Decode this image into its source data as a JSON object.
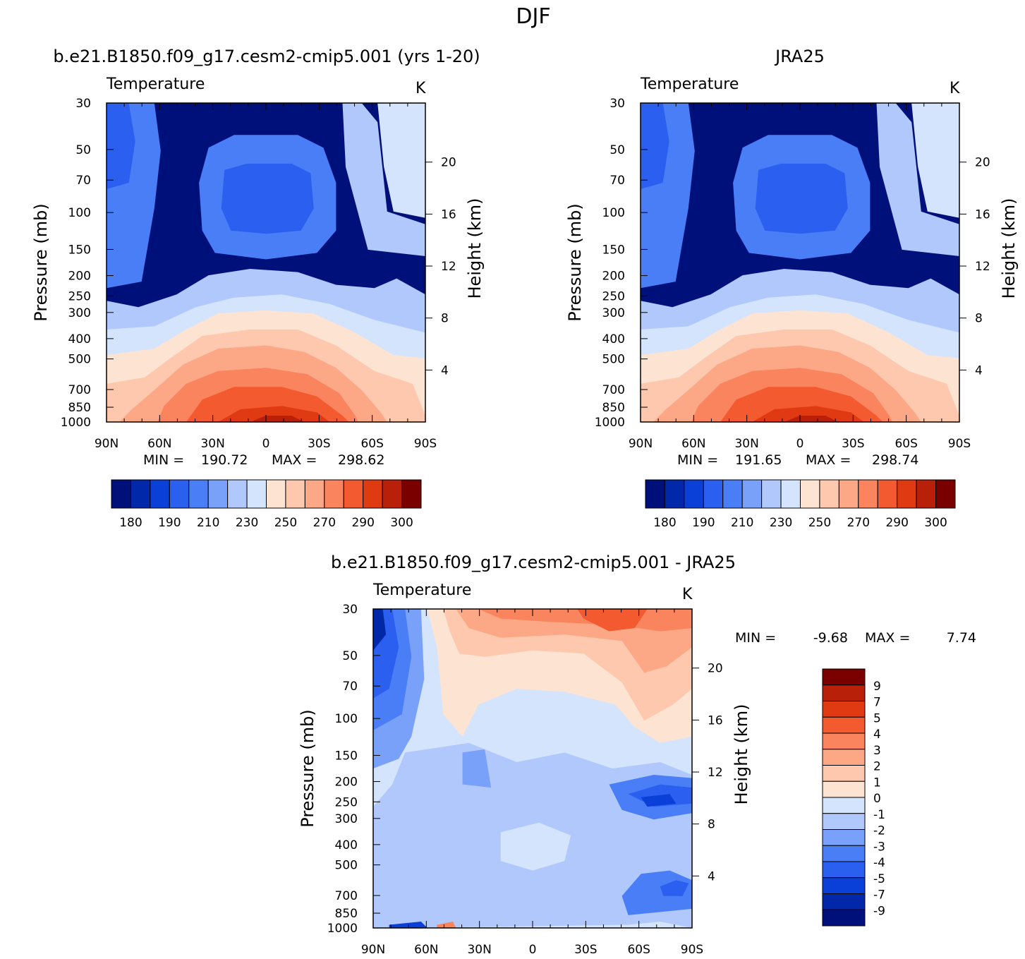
{
  "figure_title": "DJF",
  "chart_data": [
    {
      "id": "model",
      "type": "contour",
      "title": "b.e21.B1850.f09_g17.cesm2-cmip5.001 (yrs 1-20)",
      "variable": "Temperature",
      "units": "K",
      "ylabel": "Pressure (mb)",
      "ylabel_right": "Height (km)",
      "x_ticks": [
        "90N",
        "60N",
        "30N",
        "0",
        "30S",
        "60S",
        "90S"
      ],
      "y_ticks": [
        30,
        50,
        70,
        100,
        150,
        200,
        250,
        300,
        400,
        500,
        700,
        850,
        1000
      ],
      "height_ticks": [
        20,
        16,
        12,
        8,
        4
      ],
      "min_label": "MIN =",
      "min_value": "190.72",
      "max_label": "MAX =",
      "max_value": "298.62",
      "colorbar_labels": [
        "180",
        "190",
        "210",
        "230",
        "250",
        "270",
        "290",
        "300"
      ]
    },
    {
      "id": "obs",
      "type": "contour",
      "title": "JRA25",
      "variable": "Temperature",
      "units": "K",
      "ylabel": "Pressure (mb)",
      "ylabel_right": "Height (km)",
      "x_ticks": [
        "90N",
        "60N",
        "30N",
        "0",
        "30S",
        "60S",
        "90S"
      ],
      "y_ticks": [
        30,
        50,
        70,
        100,
        150,
        200,
        250,
        300,
        400,
        500,
        700,
        850,
        1000
      ],
      "height_ticks": [
        20,
        16,
        12,
        8,
        4
      ],
      "min_label": "MIN =",
      "min_value": "191.65",
      "max_label": "MAX =",
      "max_value": "298.74",
      "colorbar_labels": [
        "180",
        "190",
        "210",
        "230",
        "250",
        "270",
        "290",
        "300"
      ]
    },
    {
      "id": "diff",
      "type": "contour",
      "title": "b.e21.B1850.f09_g17.cesm2-cmip5.001 - JRA25",
      "variable": "Temperature",
      "units": "K",
      "ylabel": "Pressure (mb)",
      "ylabel_right": "Height (km)",
      "x_ticks": [
        "90N",
        "60N",
        "30N",
        "0",
        "30S",
        "60S",
        "90S"
      ],
      "y_ticks": [
        30,
        50,
        70,
        100,
        150,
        200,
        250,
        300,
        400,
        500,
        700,
        850,
        1000
      ],
      "height_ticks": [
        20,
        16,
        12,
        8,
        4
      ],
      "min_label": "MIN =",
      "min_value": "-9.68",
      "max_label": "MAX =",
      "max_value": "7.74",
      "colorbar_labels": [
        "9",
        "7",
        "5",
        "4",
        "3",
        "2",
        "1",
        "0",
        "-1",
        "-2",
        "-3",
        "-4",
        "-5",
        "-7",
        "-9"
      ]
    }
  ],
  "colors": {
    "temp_scale": [
      "#00107a",
      "#0028a8",
      "#0a3fd8",
      "#2a5fef",
      "#4a7ef7",
      "#7aa1f9",
      "#b0c8fb",
      "#d4e4fc",
      "#fde4d2",
      "#fdc8ae",
      "#fca886",
      "#f9845e",
      "#f45a2f",
      "#e03a13",
      "#b9200a",
      "#7a0000"
    ],
    "diff_scale": [
      "#7a0000",
      "#b9200a",
      "#e03a13",
      "#f45a2f",
      "#f9845e",
      "#fca886",
      "#fdc8ae",
      "#fde4d2",
      "#d4e4fc",
      "#b0c8fb",
      "#7aa1f9",
      "#4a7ef7",
      "#2a5fef",
      "#0a3fd8",
      "#0028a8",
      "#00107a"
    ]
  }
}
